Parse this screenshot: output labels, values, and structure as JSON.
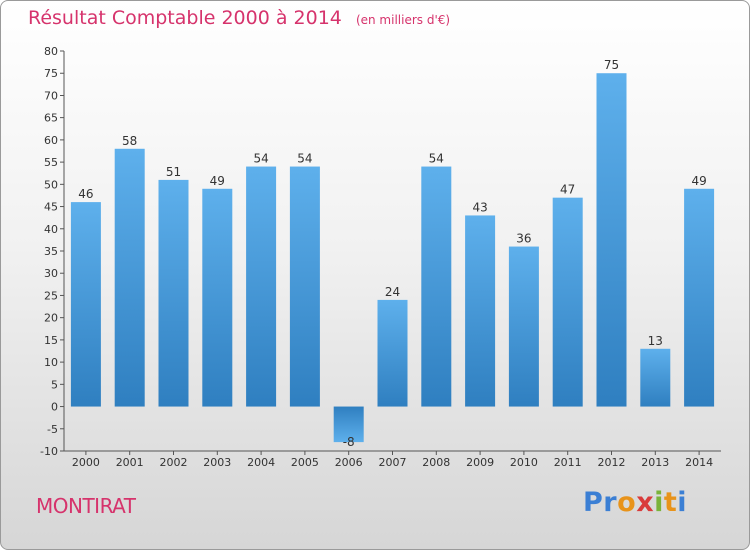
{
  "title": "Résultat Comptable 2000 à 2014",
  "unit_label": "(en milliers d'€)",
  "place_name": "MONTIRAT",
  "logo_text": "Proxiti",
  "colors": {
    "title": "#d6336c",
    "bar_top": "#5eb0ec",
    "bar_bottom": "#2f7fc0",
    "axis_text": "#333333"
  },
  "chart_data": {
    "type": "bar",
    "title": "Résultat Comptable 2000 à 2014",
    "ylabel": "en milliers d'€",
    "xlabel": "",
    "categories": [
      "2000",
      "2001",
      "2002",
      "2003",
      "2004",
      "2005",
      "2006",
      "2007",
      "2008",
      "2009",
      "2010",
      "2011",
      "2012",
      "2013",
      "2014"
    ],
    "values": [
      46,
      58,
      51,
      49,
      54,
      54,
      -8,
      24,
      54,
      43,
      36,
      47,
      75,
      13,
      49
    ],
    "ylim": [
      -10,
      80
    ],
    "yticks": [
      -10,
      -5,
      0,
      5,
      10,
      15,
      20,
      25,
      30,
      35,
      40,
      45,
      50,
      55,
      60,
      65,
      70,
      75,
      80
    ],
    "grid": false
  }
}
